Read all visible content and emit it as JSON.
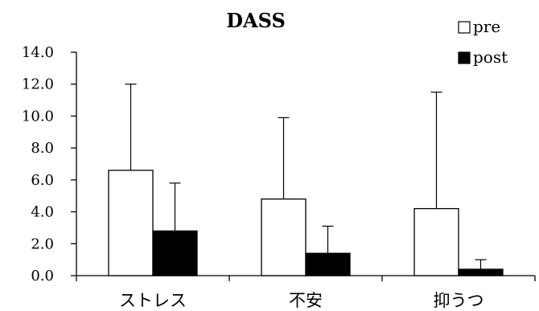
{
  "chart_data": {
    "type": "bar",
    "title": "DASS",
    "categories": [
      "ストレス",
      "不安",
      "抑うつ"
    ],
    "series": [
      {
        "name": "pre",
        "color": "#ffffff",
        "values": [
          6.6,
          4.8,
          4.2
        ],
        "error": [
          5.4,
          5.1,
          7.3
        ]
      },
      {
        "name": "post",
        "color": "#000000",
        "values": [
          2.8,
          1.4,
          0.4
        ],
        "error": [
          3.0,
          1.7,
          0.6
        ]
      }
    ],
    "ylim": [
      0,
      14
    ],
    "yticks": [
      "0.0",
      "2.0",
      "4.0",
      "6.0",
      "8.0",
      "10.0",
      "12.0",
      "14.0"
    ],
    "legend_position": "top-right",
    "grid": false
  }
}
